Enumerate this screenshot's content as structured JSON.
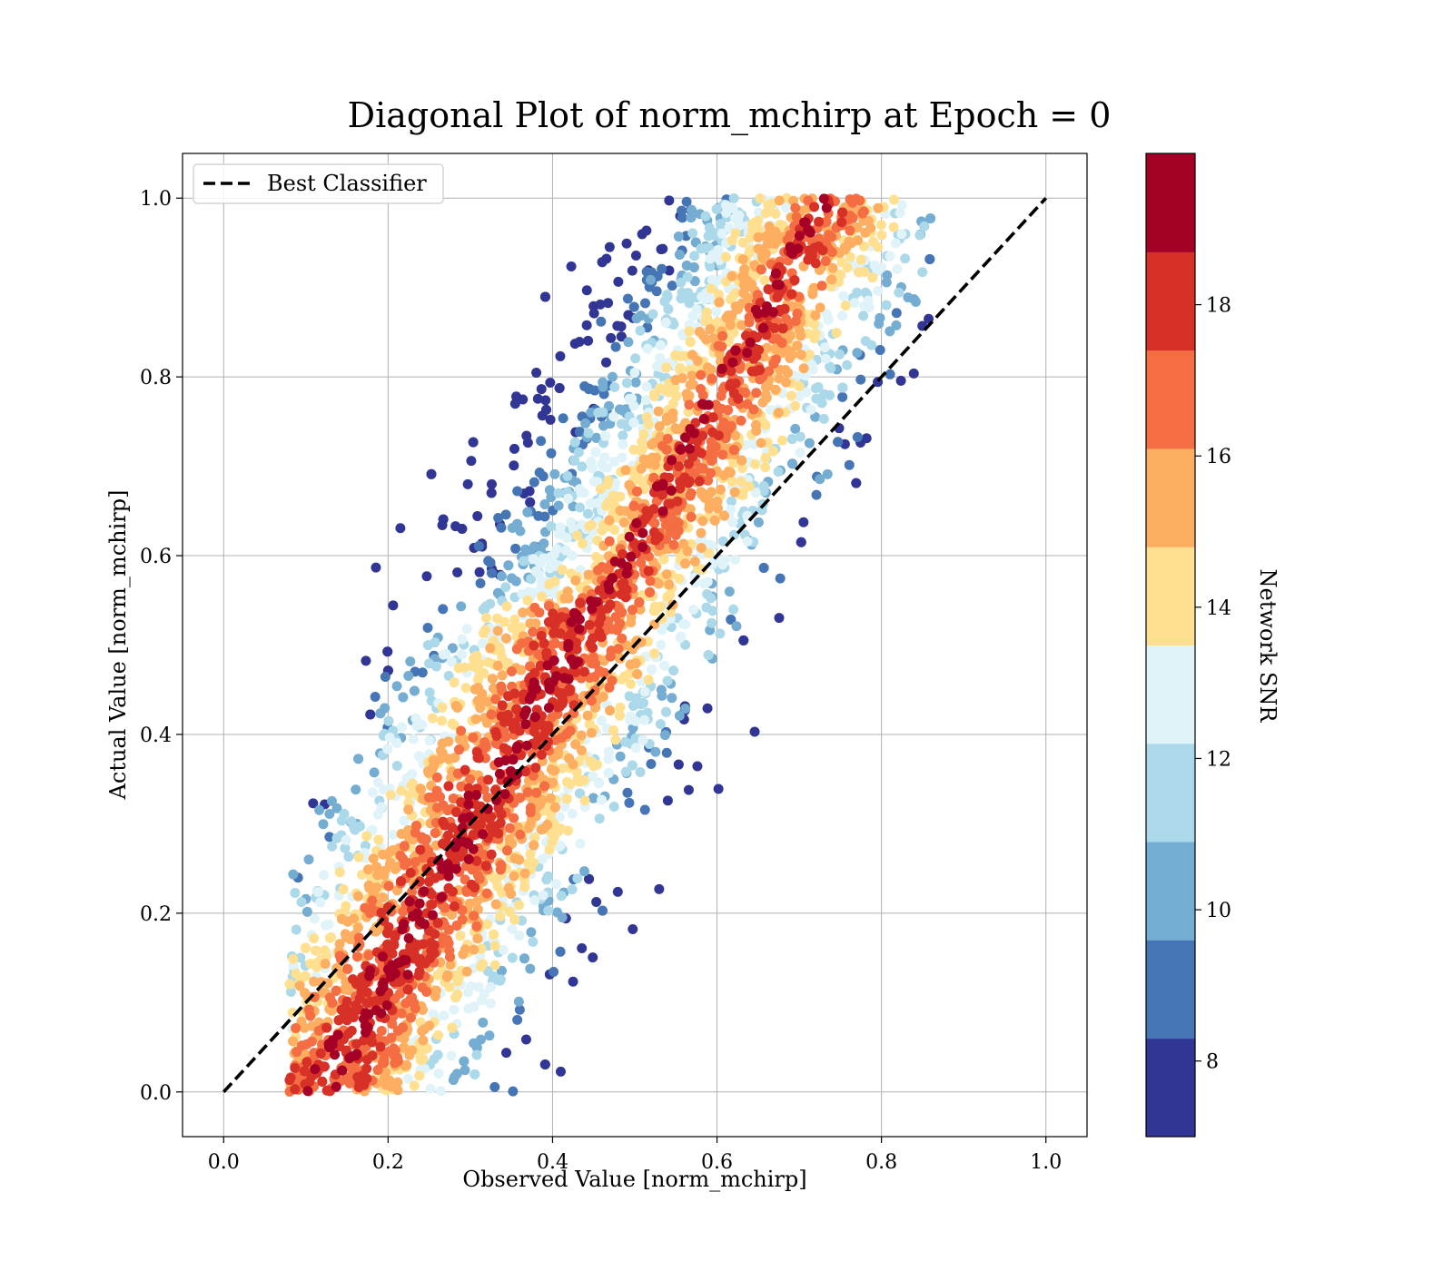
{
  "chart_data": {
    "type": "scatter",
    "title": "Diagonal Plot of norm_mchirp at Epoch = 0",
    "xlabel": "Observed Value [norm_mchirp]",
    "ylabel": "Actual Value [norm_mchirp]",
    "xlim": [
      -0.05,
      1.05
    ],
    "ylim": [
      -0.05,
      1.05
    ],
    "xticks": [
      "0.0",
      "0.2",
      "0.4",
      "0.6",
      "0.8",
      "1.0"
    ],
    "yticks": [
      "0.0",
      "0.2",
      "0.4",
      "0.6",
      "0.8",
      "1.0"
    ],
    "grid": true,
    "legend": {
      "position": "top-left",
      "entries": [
        "Best Classifier"
      ]
    },
    "reference_line": {
      "name": "Best Classifier",
      "x": [
        0.0,
        1.0
      ],
      "y": [
        0.0,
        1.0
      ],
      "style": "dashed",
      "color": "#000000"
    },
    "colorbar": {
      "label": "Network SNR",
      "range": [
        7,
        20
      ],
      "ticks": [
        "8",
        "10",
        "12",
        "14",
        "16",
        "18"
      ],
      "colors": [
        "#313695",
        "#4575b4",
        "#74add1",
        "#abd9e9",
        "#e0f3f8",
        "#fee090",
        "#fdae61",
        "#f46d43",
        "#d73027",
        "#a50026"
      ]
    },
    "scatter_summary": {
      "density_band": "points cluster along the diagonal, skewed above it at high actual values",
      "x_range": [
        0.08,
        0.86
      ],
      "y_range": [
        0.0,
        1.0
      ]
    }
  }
}
